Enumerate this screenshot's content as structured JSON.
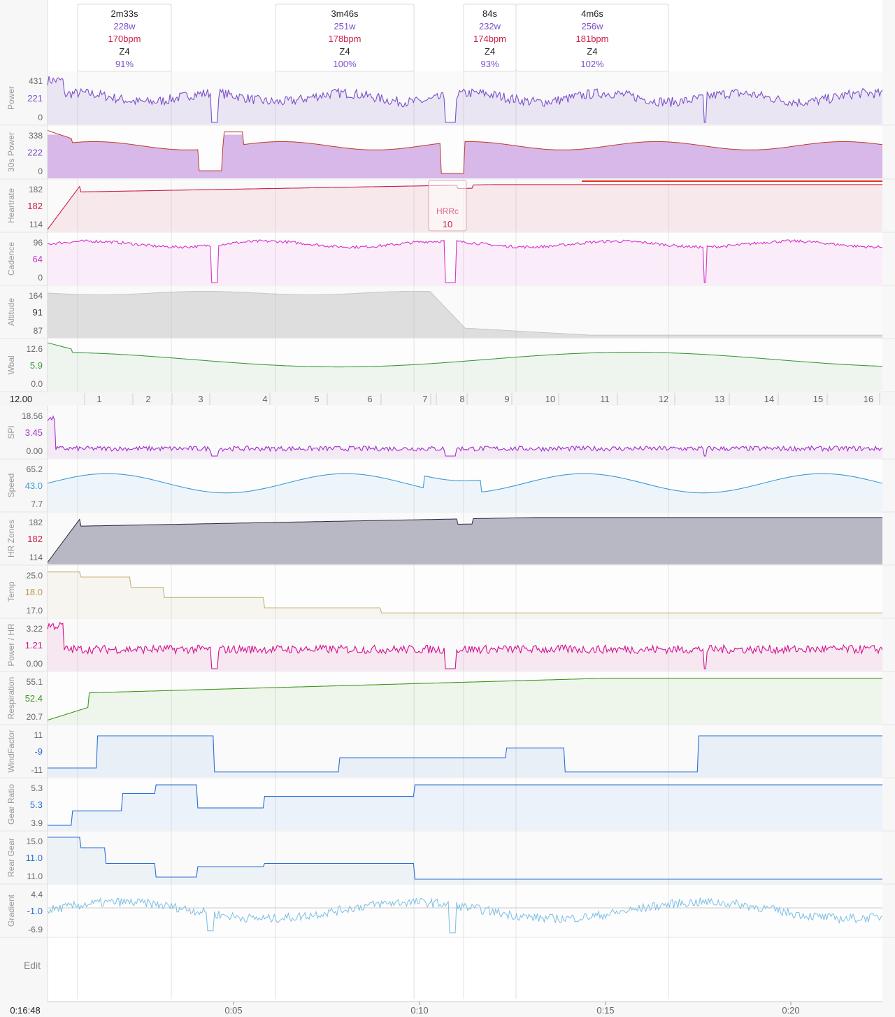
{
  "intervals": [
    {
      "duration": "2m33s",
      "power": "228w",
      "hr": "170bpm",
      "zone": "Z4",
      "pct": "91%"
    },
    {
      "duration": "3m46s",
      "power": "251w",
      "hr": "178bpm",
      "zone": "Z4",
      "pct": "100%"
    },
    {
      "duration": "84s",
      "power": "232w",
      "hr": "174bpm",
      "zone": "Z4",
      "pct": "93%"
    },
    {
      "duration": "4m6s",
      "power": "256w",
      "hr": "181bpm",
      "zone": "Z4",
      "pct": "102%"
    }
  ],
  "panels": [
    {
      "name": "Power",
      "max": "431",
      "cur": "221",
      "min": "0",
      "color": "#7b4fc9"
    },
    {
      "name": "30s Power",
      "max": "338",
      "cur": "222",
      "min": "0",
      "color": "#7b4fc9"
    },
    {
      "name": "Heartrate",
      "max": "182",
      "cur": "182",
      "min": "114",
      "color": "#cc1f45"
    },
    {
      "name": "Cadence",
      "max": "96",
      "cur": "64",
      "min": "0",
      "color": "#d633c9"
    },
    {
      "name": "Altitude",
      "max": "164",
      "cur": "91",
      "min": "87",
      "color": "#333333"
    },
    {
      "name": "Wbal",
      "max": "12.6",
      "cur": "5.9",
      "min": "0.0",
      "color": "#3e9a3e"
    },
    {
      "name": "SPI",
      "max": "18.56",
      "cur": "3.45",
      "min": "0.00",
      "color": "#a030c8"
    },
    {
      "name": "Speed",
      "max": "65.2",
      "cur": "43.0",
      "min": "7.7",
      "color": "#3a9ad4"
    },
    {
      "name": "HR Zones",
      "max": "182",
      "cur": "182",
      "min": "114",
      "color": "#cc1f45"
    },
    {
      "name": "Temp",
      "max": "25.0",
      "cur": "18.0",
      "min": "17.0",
      "color": "#b89a40"
    },
    {
      "name": "Power / HR",
      "max": "3.22",
      "cur": "1.21",
      "min": "0.00",
      "color": "#d6108e"
    },
    {
      "name": "Respiration",
      "max": "55.1",
      "cur": "52.4",
      "min": "20.7",
      "color": "#3e9a1e"
    },
    {
      "name": "WindFactor",
      "max": "11",
      "cur": "-9",
      "min": "-11",
      "color": "#2a6fd4"
    },
    {
      "name": "Gear Ratio",
      "max": "5.3",
      "cur": "5.3",
      "min": "3.9",
      "color": "#2a6fd4"
    },
    {
      "name": "Rear Gear",
      "max": "15.0",
      "cur": "11.0",
      "min": "11.0",
      "color": "#2a6fd4"
    },
    {
      "name": "Gradient",
      "max": "4.4",
      "cur": "-1.0",
      "min": "-6.9",
      "color": "#2a6fd4"
    }
  ],
  "hrrc": {
    "label": "HRRc",
    "value": "10"
  },
  "lap_scale_value": "12.00",
  "laps": [
    "1",
    "2",
    "3",
    "4",
    "5",
    "6",
    "7",
    "8",
    "9",
    "10",
    "11",
    "12",
    "13",
    "14",
    "15",
    "16"
  ],
  "edit_label": "Edit",
  "cursor_time": "0:16:48",
  "time_ticks": [
    "0:05",
    "0:10",
    "0:15",
    "0:20"
  ]
}
